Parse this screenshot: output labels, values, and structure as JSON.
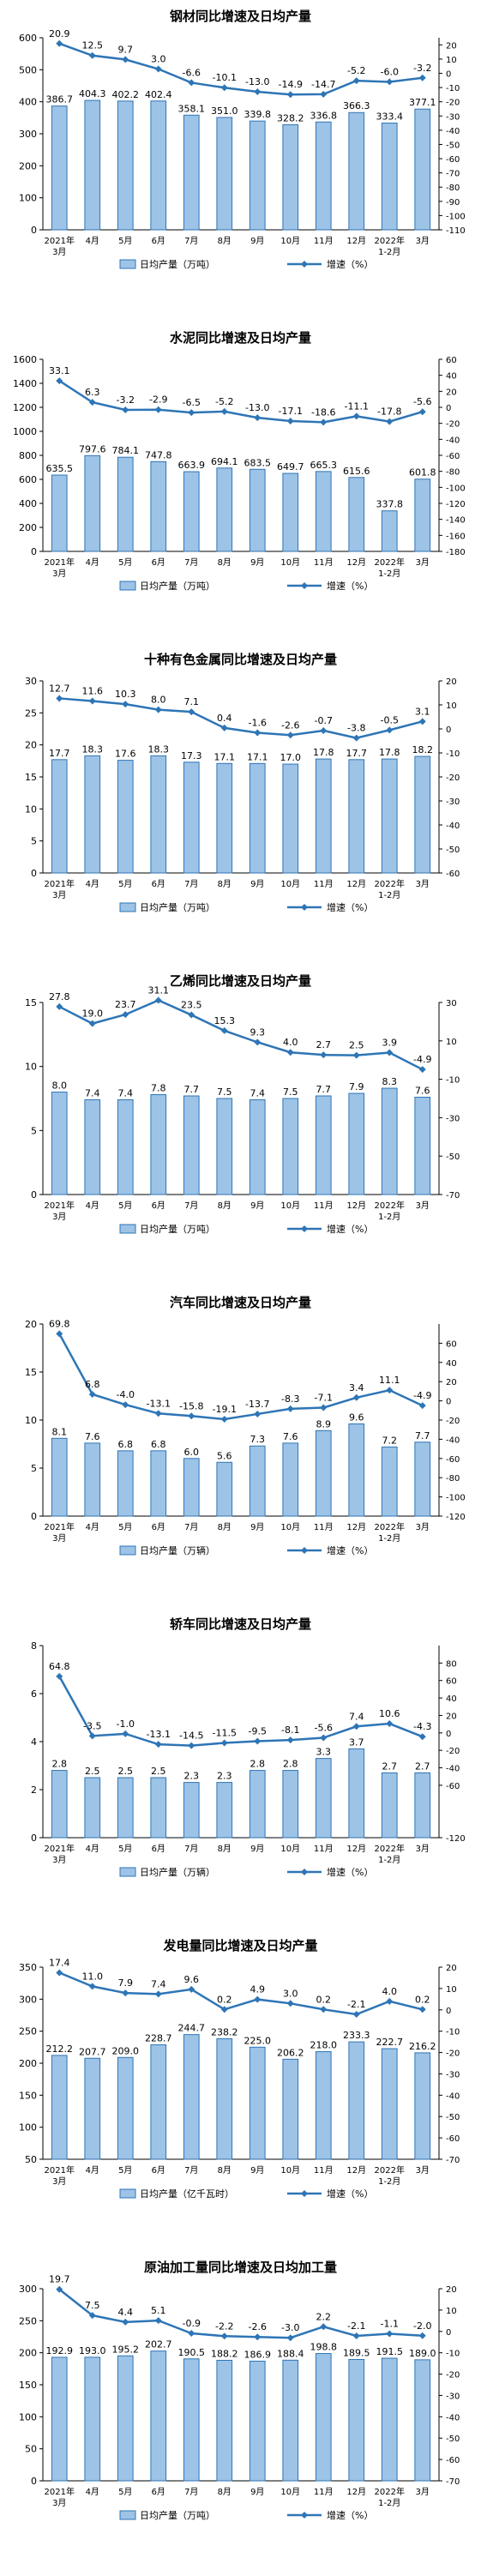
{
  "chart_data": [
    {
      "type": "bar",
      "title": "钢材同比增速及日均产量",
      "categories": [
        [
          "2021年",
          "3月"
        ],
        [
          "4月"
        ],
        [
          "5月"
        ],
        [
          "6月"
        ],
        [
          "7月"
        ],
        [
          "8月"
        ],
        [
          "9月"
        ],
        [
          "10月"
        ],
        [
          "11月"
        ],
        [
          "12月"
        ],
        [
          "2022年",
          "1-2月"
        ],
        [
          "3月"
        ]
      ],
      "bar_series": {
        "name": "日均产量（万吨）",
        "values": [
          386.7,
          404.3,
          402.2,
          402.4,
          358.1,
          351.0,
          339.8,
          328.2,
          336.8,
          366.3,
          333.4,
          377.1
        ]
      },
      "line_series": {
        "name": "增速（%）",
        "values": [
          20.9,
          12.5,
          9.7,
          3.0,
          -6.6,
          -10.1,
          -13.0,
          -14.9,
          -14.7,
          -5.2,
          -6.0,
          -3.2
        ]
      },
      "ylim_left": [
        0,
        600
      ],
      "yticks_left": [
        0,
        100,
        200,
        300,
        400,
        500,
        600
      ],
      "ylim_right": [
        -110,
        25
      ],
      "yticks_right": [
        -110,
        -100,
        -90,
        -80,
        -70,
        -60,
        -50,
        -40,
        -30,
        -20,
        -10,
        0,
        10,
        20
      ],
      "grid": false,
      "legend": "bottom-center"
    },
    {
      "type": "bar",
      "title": "水泥同比增速及日均产量",
      "categories": [
        [
          "2021年",
          "3月"
        ],
        [
          "4月"
        ],
        [
          "5月"
        ],
        [
          "6月"
        ],
        [
          "7月"
        ],
        [
          "8月"
        ],
        [
          "9月"
        ],
        [
          "10月"
        ],
        [
          "11月"
        ],
        [
          "12月"
        ],
        [
          "2022年",
          "1-2月"
        ],
        [
          "3月"
        ]
      ],
      "bar_series": {
        "name": "日均产量（万吨）",
        "values": [
          635.5,
          797.6,
          784.1,
          747.8,
          663.9,
          694.1,
          683.5,
          649.7,
          665.3,
          615.6,
          337.8,
          601.8
        ]
      },
      "line_series": {
        "name": "增速（%）",
        "values": [
          33.1,
          6.3,
          -3.2,
          -2.9,
          -6.5,
          -5.2,
          -13.0,
          -17.1,
          -18.6,
          -11.1,
          -17.8,
          -5.6
        ]
      },
      "ylim_left": [
        0,
        1600
      ],
      "yticks_left": [
        0,
        200,
        400,
        600,
        800,
        1000,
        1200,
        1400,
        1600
      ],
      "ylim_right": [
        -180,
        60
      ],
      "yticks_right": [
        -180,
        -160,
        -140,
        -120,
        -100,
        -80,
        -60,
        -40,
        -20,
        0,
        20,
        40,
        60
      ],
      "grid": false,
      "legend": "bottom-center"
    },
    {
      "type": "bar",
      "title": "十种有色金属同比增速及日均产量",
      "categories": [
        [
          "2021年",
          "3月"
        ],
        [
          "4月"
        ],
        [
          "5月"
        ],
        [
          "6月"
        ],
        [
          "7月"
        ],
        [
          "8月"
        ],
        [
          "9月"
        ],
        [
          "10月"
        ],
        [
          "11月"
        ],
        [
          "12月"
        ],
        [
          "2022年",
          "1-2月"
        ],
        [
          "3月"
        ]
      ],
      "bar_series": {
        "name": "日均产量（万吨）",
        "values": [
          17.7,
          18.3,
          17.6,
          18.3,
          17.3,
          17.1,
          17.1,
          17.0,
          17.8,
          17.7,
          17.8,
          18.2
        ]
      },
      "line_series": {
        "name": "增速（%）",
        "values": [
          12.7,
          11.6,
          10.3,
          8.0,
          7.1,
          0.4,
          -1.6,
          -2.6,
          -0.7,
          -3.8,
          -0.5,
          3.1
        ]
      },
      "ylim_left": [
        0,
        30
      ],
      "yticks_left": [
        0,
        5,
        10,
        15,
        20,
        25,
        30
      ],
      "ylim_right": [
        -60,
        20
      ],
      "yticks_right": [
        -60,
        -50,
        -40,
        -30,
        -20,
        -10,
        0,
        10,
        20
      ],
      "grid": false,
      "legend": "bottom-center"
    },
    {
      "type": "bar",
      "title": "乙烯同比增速及日均产量",
      "categories": [
        [
          "2021年",
          "3月"
        ],
        [
          "4月"
        ],
        [
          "5月"
        ],
        [
          "6月"
        ],
        [
          "7月"
        ],
        [
          "8月"
        ],
        [
          "9月"
        ],
        [
          "10月"
        ],
        [
          "11月"
        ],
        [
          "12月"
        ],
        [
          "2022年",
          "1-2月"
        ],
        [
          "3月"
        ]
      ],
      "bar_series": {
        "name": "日均产量（万吨）",
        "values": [
          8.0,
          7.4,
          7.4,
          7.8,
          7.7,
          7.5,
          7.4,
          7.5,
          7.7,
          7.9,
          8.3,
          7.6
        ]
      },
      "line_series": {
        "name": "增速（%）",
        "values": [
          27.8,
          19.0,
          23.7,
          31.1,
          23.5,
          15.3,
          9.3,
          4.0,
          2.7,
          2.5,
          3.9,
          -4.9
        ]
      },
      "ylim_left": [
        0,
        15
      ],
      "yticks_left": [
        0,
        5,
        10,
        15
      ],
      "ylim_right": [
        -70,
        30
      ],
      "yticks_right": [
        -70,
        -50,
        -30,
        -10,
        10,
        30
      ],
      "grid": false,
      "legend": "bottom-center"
    },
    {
      "type": "bar",
      "title": "汽车同比增速及日均产量",
      "categories": [
        [
          "2021年",
          "3月"
        ],
        [
          "4月"
        ],
        [
          "5月"
        ],
        [
          "6月"
        ],
        [
          "7月"
        ],
        [
          "8月"
        ],
        [
          "9月"
        ],
        [
          "10月"
        ],
        [
          "11月"
        ],
        [
          "12月"
        ],
        [
          "2022年",
          "1-2月"
        ],
        [
          "3月"
        ]
      ],
      "bar_series": {
        "name": "日均产量（万辆）",
        "values": [
          8.1,
          7.6,
          6.8,
          6.8,
          6.0,
          5.6,
          7.3,
          7.6,
          8.9,
          9.6,
          7.2,
          7.7
        ]
      },
      "line_series": {
        "name": "增速（%）",
        "values": [
          69.8,
          6.8,
          -4.0,
          -13.1,
          -15.8,
          -19.1,
          -13.7,
          -8.3,
          -7.1,
          3.4,
          11.1,
          -4.9
        ]
      },
      "ylim_left": [
        0,
        20
      ],
      "yticks_left": [
        0,
        5,
        10,
        15,
        20
      ],
      "ylim_right": [
        -120,
        80
      ],
      "yticks_right": [
        -120,
        -100,
        -80,
        -60,
        -40,
        -20,
        0,
        20,
        40,
        60
      ],
      "grid": false,
      "legend": "bottom-center"
    },
    {
      "type": "bar",
      "title": "轿车同比增速及日均产量",
      "categories": [
        [
          "2021年",
          "3月"
        ],
        [
          "4月"
        ],
        [
          "5月"
        ],
        [
          "6月"
        ],
        [
          "7月"
        ],
        [
          "8月"
        ],
        [
          "9月"
        ],
        [
          "10月"
        ],
        [
          "11月"
        ],
        [
          "12月"
        ],
        [
          "2022年",
          "1-2月"
        ],
        [
          "3月"
        ]
      ],
      "bar_series": {
        "name": "日均产量（万辆）",
        "values": [
          2.8,
          2.5,
          2.5,
          2.5,
          2.3,
          2.3,
          2.8,
          2.8,
          3.3,
          3.7,
          2.7,
          2.7
        ]
      },
      "line_series": {
        "name": "增速（%）",
        "values": [
          64.8,
          -3.5,
          -1.0,
          -13.1,
          -14.5,
          -11.5,
          -9.5,
          -8.1,
          -5.6,
          7.4,
          10.6,
          -4.3
        ]
      },
      "ylim_left": [
        0,
        8
      ],
      "yticks_left": [
        0,
        2,
        4,
        6,
        8
      ],
      "ylim_right": [
        -120,
        100
      ],
      "yticks_right": [
        -120,
        -60,
        -40,
        -20,
        0,
        20,
        40,
        60,
        80
      ],
      "grid": false,
      "legend": "bottom-center"
    },
    {
      "type": "bar",
      "title": "发电量同比增速及日均产量",
      "categories": [
        [
          "2021年",
          "3月"
        ],
        [
          "4月"
        ],
        [
          "5月"
        ],
        [
          "6月"
        ],
        [
          "7月"
        ],
        [
          "8月"
        ],
        [
          "9月"
        ],
        [
          "10月"
        ],
        [
          "11月"
        ],
        [
          "12月"
        ],
        [
          "2022年",
          "1-2月"
        ],
        [
          "3月"
        ]
      ],
      "bar_series": {
        "name": "日均产量（亿千瓦时）",
        "values": [
          212.2,
          207.7,
          209.0,
          228.7,
          244.7,
          238.2,
          225.0,
          206.2,
          218.0,
          233.3,
          222.7,
          216.2
        ]
      },
      "line_series": {
        "name": "增速（%）",
        "values": [
          17.4,
          11.0,
          7.9,
          7.4,
          9.6,
          0.2,
          4.9,
          3.0,
          0.2,
          -2.1,
          4.0,
          0.2
        ]
      },
      "ylim_left": [
        50,
        350
      ],
      "yticks_left": [
        50,
        100,
        150,
        200,
        250,
        300,
        350
      ],
      "ylim_right": [
        -70,
        20
      ],
      "yticks_right": [
        -70,
        -60,
        -50,
        -40,
        -30,
        -20,
        -10,
        0,
        10,
        20
      ],
      "grid": false,
      "legend": "bottom-center"
    },
    {
      "type": "bar",
      "title": "原油加工量同比增速及日均加工量",
      "categories": [
        [
          "2021年",
          "3月"
        ],
        [
          "4月"
        ],
        [
          "5月"
        ],
        [
          "6月"
        ],
        [
          "7月"
        ],
        [
          "8月"
        ],
        [
          "9月"
        ],
        [
          "10月"
        ],
        [
          "11月"
        ],
        [
          "12月"
        ],
        [
          "2022年",
          "1-2月"
        ],
        [
          "3月"
        ]
      ],
      "bar_series": {
        "name": "日均产量（万吨）",
        "values": [
          192.9,
          193.0,
          195.2,
          202.7,
          190.5,
          188.2,
          186.9,
          188.4,
          198.8,
          189.5,
          191.5,
          189.0
        ]
      },
      "line_series": {
        "name": "增速（%）",
        "values": [
          19.7,
          7.5,
          4.4,
          5.1,
          -0.9,
          -2.2,
          -2.6,
          -3.0,
          2.2,
          -2.1,
          -1.1,
          -2.0
        ]
      },
      "ylim_left": [
        0,
        300
      ],
      "yticks_left": [
        0,
        50,
        100,
        150,
        200,
        250,
        300
      ],
      "ylim_right": [
        -70,
        20
      ],
      "yticks_right": [
        -70,
        -60,
        -50,
        -40,
        -30,
        -20,
        -10,
        0,
        10,
        20
      ],
      "grid": false,
      "legend": "bottom-center"
    }
  ]
}
